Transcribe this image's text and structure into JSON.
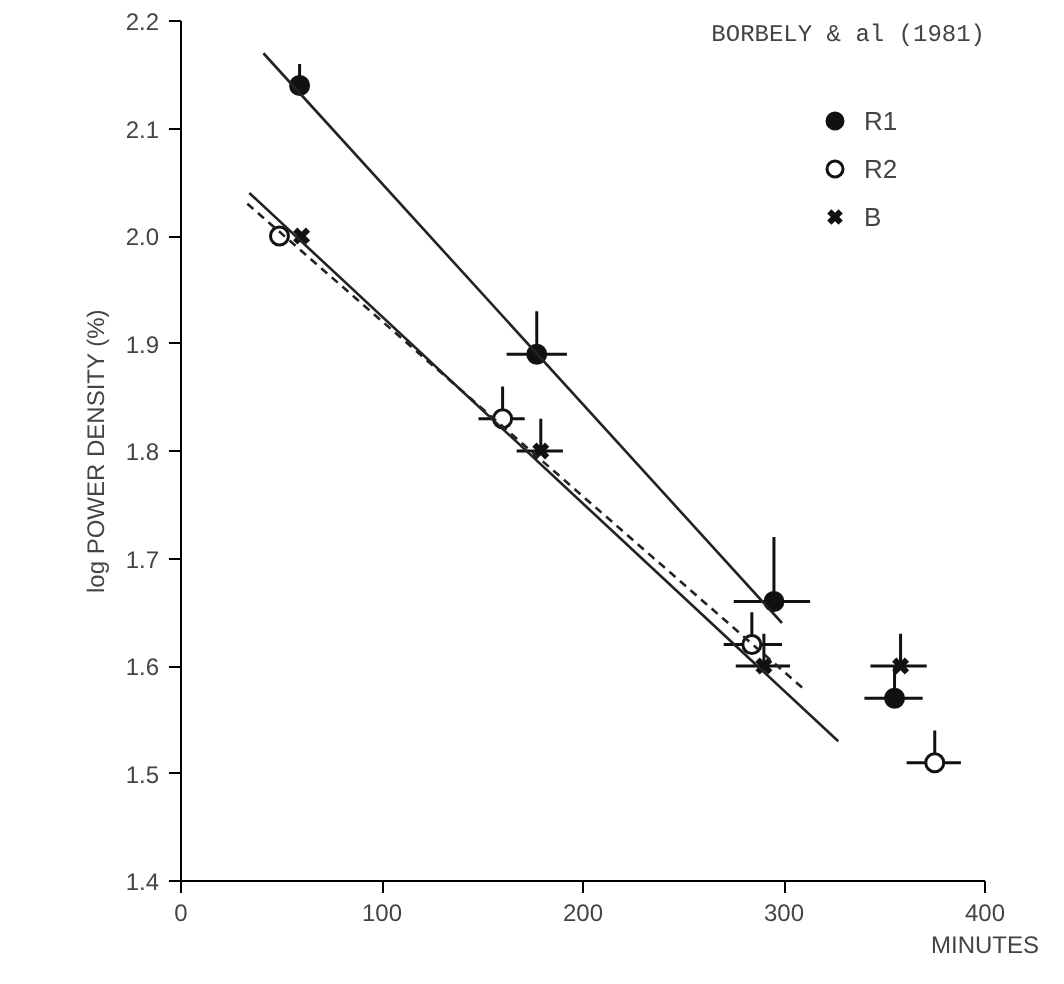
{
  "chart_data": {
    "type": "scatter",
    "xlabel": "MINUTES",
    "ylabel": "log POWER DENSITY (%)",
    "annotations": [
      "BORBELY & al (1981)"
    ],
    "xlim": [
      0,
      400
    ],
    "ylim": [
      1.4,
      2.2
    ],
    "xticks": [
      0,
      100,
      200,
      300,
      400
    ],
    "yticks": [
      1.4,
      1.5,
      1.6,
      1.7,
      1.8,
      1.9,
      {
        "value": 2.0,
        "label": "2.0"
      },
      2.1,
      2.2
    ],
    "grid": false,
    "legend": "top right",
    "series": [
      {
        "name": "R1",
        "color": "#111111",
        "marker": "circle",
        "x": [
          59,
          177,
          295,
          355
        ],
        "values": [
          2.14,
          1.89,
          1.66,
          1.57
        ],
        "errors": [
          [
            2.14,
            2.16
          ],
          [
            1.89,
            1.93
          ],
          [
            1.66,
            1.72
          ],
          [
            1.57,
            1.6
          ]
        ],
        "xerrors": [
          null,
          [
            162,
            192
          ],
          [
            275,
            313
          ],
          [
            340,
            369
          ]
        ]
      },
      {
        "name": "R2",
        "color": "#ffffff",
        "marker": "circle",
        "x": [
          49,
          160,
          284,
          375
        ],
        "values": [
          2.0,
          1.83,
          1.62,
          1.51
        ],
        "errors": [
          null,
          [
            1.83,
            1.86
          ],
          [
            1.62,
            1.65
          ],
          [
            1.51,
            1.54
          ]
        ],
        "xerrors": [
          null,
          [
            148,
            171
          ],
          [
            270,
            299
          ],
          [
            361,
            388
          ]
        ]
      },
      {
        "name": "B",
        "color": "#111111",
        "marker": "cross",
        "x": [
          60,
          179,
          290,
          358
        ],
        "values": [
          2.0,
          1.8,
          1.6,
          1.6
        ],
        "errors": [
          null,
          [
            1.8,
            1.83
          ],
          [
            1.6,
            1.63
          ],
          [
            1.6,
            1.63
          ]
        ],
        "xerrors": [
          null,
          [
            167,
            190
          ],
          [
            276,
            303
          ],
          [
            343,
            371
          ]
        ]
      },
      {
        "type": "line",
        "color": "#222222",
        "line_style": "solid",
        "x": [
          41,
          299
        ],
        "values": [
          2.17,
          1.64
        ]
      },
      {
        "type": "line",
        "color": "#222222",
        "line_style": "solid",
        "x": [
          34,
          327
        ],
        "values": [
          2.04,
          1.53
        ]
      },
      {
        "type": "line",
        "color": "#222222",
        "line_style": "dashed",
        "x": [
          33,
          309
        ],
        "values": [
          2.03,
          1.58
        ]
      }
    ]
  }
}
